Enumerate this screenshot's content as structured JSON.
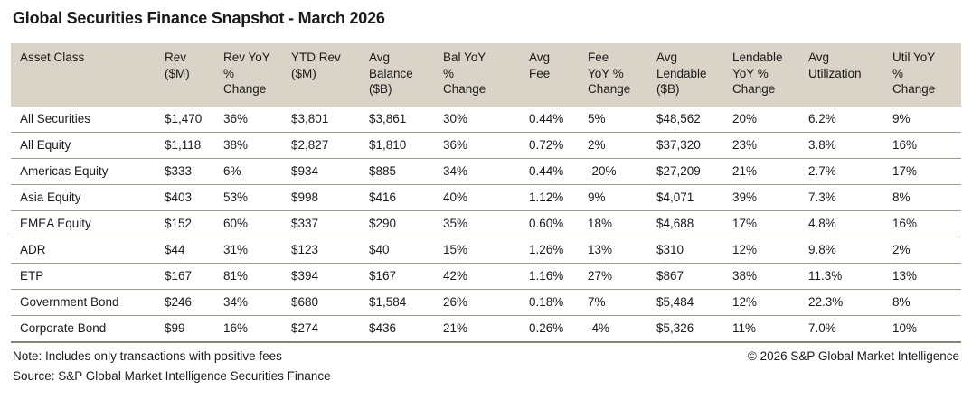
{
  "title": "Global Securities Finance Snapshot - March 2026",
  "table": {
    "columns": [
      "Asset Class",
      "Rev\n($M)",
      "Rev YoY\n%\nChange",
      "YTD Rev\n($M)",
      "Avg\nBalance\n($B)",
      "Bal YoY\n%\nChange",
      "Avg\nFee",
      "Fee\nYoY %\nChange",
      "Avg\nLendable\n($B)",
      "Lendable\nYoY %\nChange",
      "Avg\nUtilization",
      "Util YoY\n%\nChange"
    ],
    "rows": [
      [
        "All Securities",
        "$1,470",
        "36%",
        "$3,801",
        "$3,861",
        "30%",
        "0.44%",
        "5%",
        "$48,562",
        "20%",
        "6.2%",
        "9%"
      ],
      [
        "All Equity",
        "$1,118",
        "38%",
        "$2,827",
        "$1,810",
        "36%",
        "0.72%",
        "2%",
        "$37,320",
        "23%",
        "3.8%",
        "16%"
      ],
      [
        "Americas Equity",
        "$333",
        "6%",
        "$934",
        "$885",
        "34%",
        "0.44%",
        "-20%",
        "$27,209",
        "21%",
        "2.7%",
        "17%"
      ],
      [
        "Asia Equity",
        "$403",
        "53%",
        "$998",
        "$416",
        "40%",
        "1.12%",
        "9%",
        "$4,071",
        "39%",
        "7.3%",
        "8%"
      ],
      [
        "EMEA Equity",
        "$152",
        "60%",
        "$337",
        "$290",
        "35%",
        "0.60%",
        "18%",
        "$4,688",
        "17%",
        "4.8%",
        "16%"
      ],
      [
        "ADR",
        "$44",
        "31%",
        "$123",
        "$40",
        "15%",
        "1.26%",
        "13%",
        "$310",
        "12%",
        "9.8%",
        "2%"
      ],
      [
        "ETP",
        "$167",
        "81%",
        "$394",
        "$167",
        "42%",
        "1.16%",
        "27%",
        "$867",
        "38%",
        "11.3%",
        "13%"
      ],
      [
        "Government Bond",
        "$246",
        "34%",
        "$680",
        "$1,584",
        "26%",
        "0.18%",
        "7%",
        "$5,484",
        "12%",
        "22.3%",
        "8%"
      ],
      [
        "Corporate Bond",
        "$99",
        "16%",
        "$274",
        "$436",
        "21%",
        "0.26%",
        "-4%",
        "$5,326",
        "11%",
        "7.0%",
        "10%"
      ]
    ]
  },
  "chart_data": {
    "type": "table",
    "title": "Global Securities Finance Snapshot - March 2026",
    "columns": [
      "Asset Class",
      "Rev ($M)",
      "Rev YoY % Change",
      "YTD Rev ($M)",
      "Avg Balance ($B)",
      "Bal YoY % Change",
      "Avg Fee",
      "Fee YoY % Change",
      "Avg Lendable ($B)",
      "Lendable YoY % Change",
      "Avg Utilization",
      "Util YoY % Change"
    ],
    "rows": [
      {
        "asset_class": "All Securities",
        "rev_m": 1470,
        "rev_yoy_pct": 36,
        "ytd_rev_m": 3801,
        "avg_balance_b": 3861,
        "bal_yoy_pct": 30,
        "avg_fee_pct": 0.44,
        "fee_yoy_pct": 5,
        "avg_lendable_b": 48562,
        "lendable_yoy_pct": 20,
        "avg_utilization_pct": 6.2,
        "util_yoy_pct": 9
      },
      {
        "asset_class": "All Equity",
        "rev_m": 1118,
        "rev_yoy_pct": 38,
        "ytd_rev_m": 2827,
        "avg_balance_b": 1810,
        "bal_yoy_pct": 36,
        "avg_fee_pct": 0.72,
        "fee_yoy_pct": 2,
        "avg_lendable_b": 37320,
        "lendable_yoy_pct": 23,
        "avg_utilization_pct": 3.8,
        "util_yoy_pct": 16
      },
      {
        "asset_class": "Americas Equity",
        "rev_m": 333,
        "rev_yoy_pct": 6,
        "ytd_rev_m": 934,
        "avg_balance_b": 885,
        "bal_yoy_pct": 34,
        "avg_fee_pct": 0.44,
        "fee_yoy_pct": -20,
        "avg_lendable_b": 27209,
        "lendable_yoy_pct": 21,
        "avg_utilization_pct": 2.7,
        "util_yoy_pct": 17
      },
      {
        "asset_class": "Asia Equity",
        "rev_m": 403,
        "rev_yoy_pct": 53,
        "ytd_rev_m": 998,
        "avg_balance_b": 416,
        "bal_yoy_pct": 40,
        "avg_fee_pct": 1.12,
        "fee_yoy_pct": 9,
        "avg_lendable_b": 4071,
        "lendable_yoy_pct": 39,
        "avg_utilization_pct": 7.3,
        "util_yoy_pct": 8
      },
      {
        "asset_class": "EMEA Equity",
        "rev_m": 152,
        "rev_yoy_pct": 60,
        "ytd_rev_m": 337,
        "avg_balance_b": 290,
        "bal_yoy_pct": 35,
        "avg_fee_pct": 0.6,
        "fee_yoy_pct": 18,
        "avg_lendable_b": 4688,
        "lendable_yoy_pct": 17,
        "avg_utilization_pct": 4.8,
        "util_yoy_pct": 16
      },
      {
        "asset_class": "ADR",
        "rev_m": 44,
        "rev_yoy_pct": 31,
        "ytd_rev_m": 123,
        "avg_balance_b": 40,
        "bal_yoy_pct": 15,
        "avg_fee_pct": 1.26,
        "fee_yoy_pct": 13,
        "avg_lendable_b": 310,
        "lendable_yoy_pct": 12,
        "avg_utilization_pct": 9.8,
        "util_yoy_pct": 2
      },
      {
        "asset_class": "ETP",
        "rev_m": 167,
        "rev_yoy_pct": 81,
        "ytd_rev_m": 394,
        "avg_balance_b": 167,
        "bal_yoy_pct": 42,
        "avg_fee_pct": 1.16,
        "fee_yoy_pct": 27,
        "avg_lendable_b": 867,
        "lendable_yoy_pct": 38,
        "avg_utilization_pct": 11.3,
        "util_yoy_pct": 13
      },
      {
        "asset_class": "Government Bond",
        "rev_m": 246,
        "rev_yoy_pct": 34,
        "ytd_rev_m": 680,
        "avg_balance_b": 1584,
        "bal_yoy_pct": 26,
        "avg_fee_pct": 0.18,
        "fee_yoy_pct": 7,
        "avg_lendable_b": 5484,
        "lendable_yoy_pct": 12,
        "avg_utilization_pct": 22.3,
        "util_yoy_pct": 8
      },
      {
        "asset_class": "Corporate Bond",
        "rev_m": 99,
        "rev_yoy_pct": 16,
        "ytd_rev_m": 274,
        "avg_balance_b": 436,
        "bal_yoy_pct": 21,
        "avg_fee_pct": 0.26,
        "fee_yoy_pct": -4,
        "avg_lendable_b": 5326,
        "lendable_yoy_pct": 11,
        "avg_utilization_pct": 7.0,
        "util_yoy_pct": 10
      }
    ]
  },
  "footer": {
    "note": "Note: Includes only transactions with positive fees",
    "source": "Source: S&P Global Market Intelligence Securities Finance",
    "copyright": "© 2026 S&P Global Market Intelligence"
  },
  "colors": {
    "header_bg": "#dad4c8",
    "row_divider": "#a39b8c",
    "table_bottom_border": "#8a8274",
    "text": "#1a1a1a",
    "background": "#ffffff"
  }
}
